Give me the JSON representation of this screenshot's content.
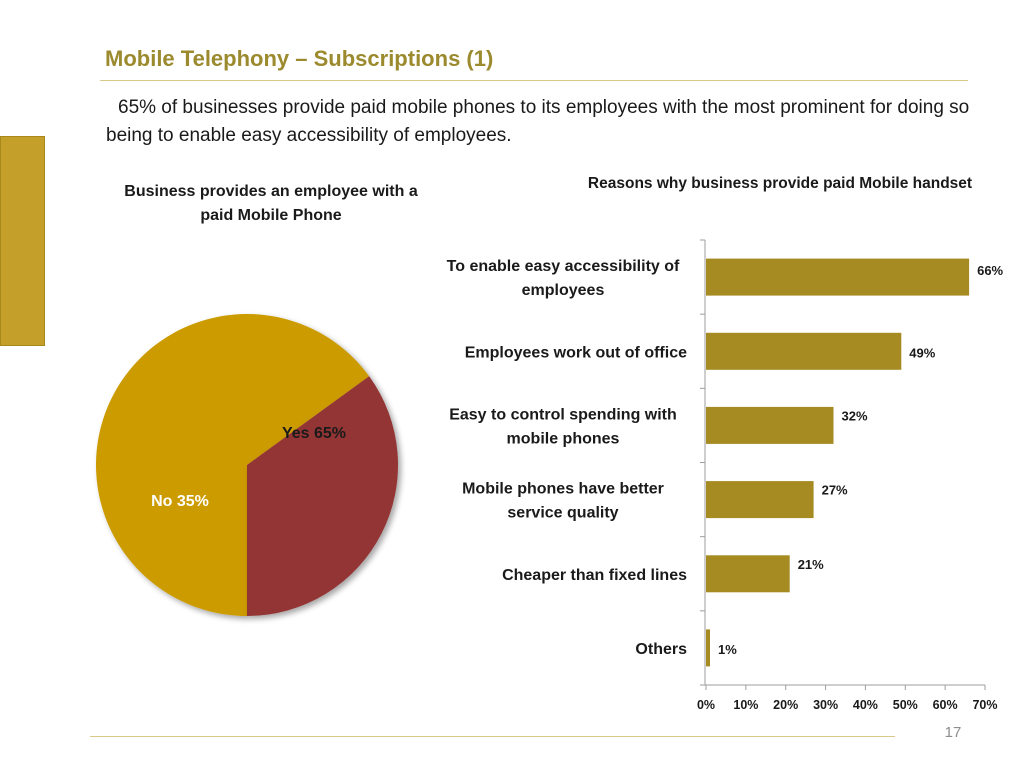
{
  "slide": {
    "title": "Mobile Telephony – Subscriptions (1)",
    "intro": "65% of businesses provide paid mobile phones to its employees with the most prominent for doing so being to enable easy accessibility of employees.",
    "page_number": "17"
  },
  "colors": {
    "title": "#9b8a2e",
    "accent": "#c4a02a",
    "bar": "#a58b22",
    "pie_yes": "#cc9b00",
    "pie_no": "#933535"
  },
  "chart_data": [
    {
      "type": "pie",
      "title": "Business provides an employee with a paid Mobile Phone",
      "slices": [
        {
          "label": "Yes 65%",
          "category": "Yes",
          "value": 65,
          "color": "#cc9b00"
        },
        {
          "label": "No 35%",
          "category": "No",
          "value": 35,
          "color": "#933535"
        }
      ]
    },
    {
      "type": "bar",
      "orientation": "horizontal",
      "title": "Reasons why business provide paid Mobile handset",
      "categories": [
        [
          "To enable easy accessibility of",
          "employees"
        ],
        [
          "Employees work out of office"
        ],
        [
          "Easy to control spending with",
          "mobile phones"
        ],
        [
          "Mobile phones have better",
          "service quality"
        ],
        [
          "Cheaper than fixed lines"
        ],
        [
          "Others"
        ]
      ],
      "values": [
        66,
        49,
        32,
        27,
        21,
        1
      ],
      "data_labels": [
        "66%",
        "49%",
        "32%",
        "27%",
        "21%",
        "1%"
      ],
      "xlim": [
        0,
        70
      ],
      "xticks": [
        0,
        10,
        20,
        30,
        40,
        50,
        60,
        70
      ],
      "xtick_labels": [
        "0%",
        "10%",
        "20%",
        "30%",
        "40%",
        "50%",
        "60%",
        "70%"
      ],
      "grid": false,
      "legend": "none"
    }
  ]
}
